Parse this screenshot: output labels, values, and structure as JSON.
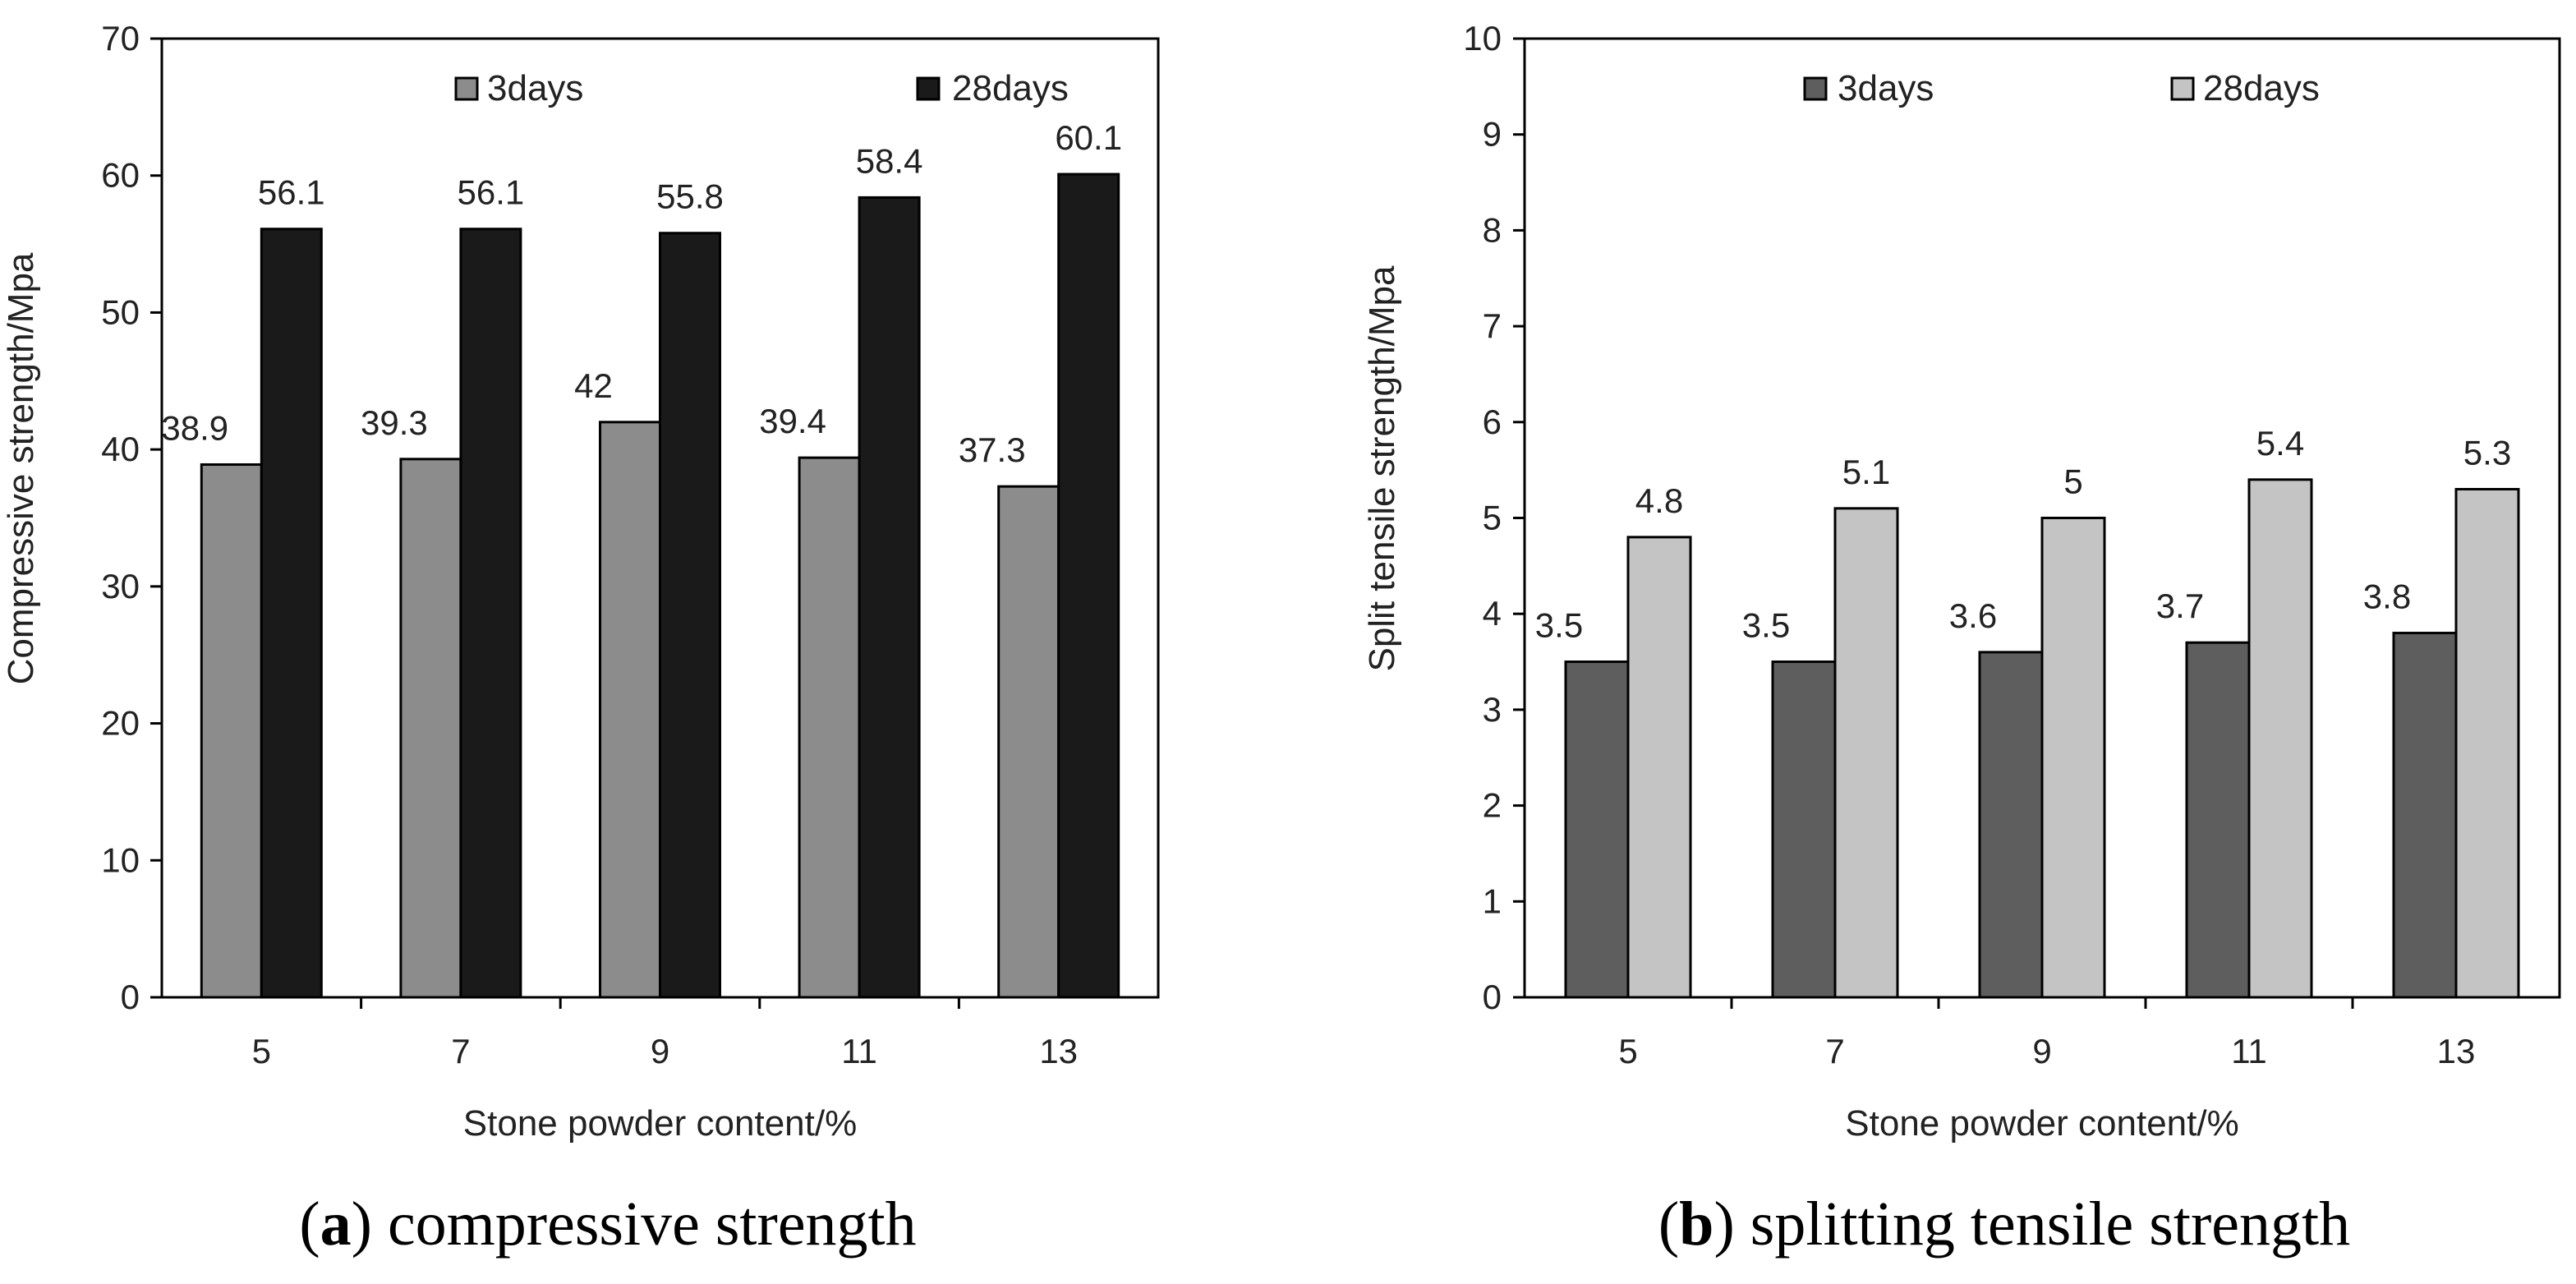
{
  "chart_data": [
    {
      "type": "bar",
      "caption_letter": "a",
      "caption_text": " compressive strength",
      "categories": [
        "5",
        "7",
        "9",
        "11",
        "13"
      ],
      "series": [
        {
          "name": "3days",
          "color": "#8c8c8c",
          "values": [
            38.9,
            39.3,
            42,
            39.4,
            37.3
          ],
          "labels": [
            "38.9",
            "39.3",
            "42",
            "39.4",
            "37.3"
          ]
        },
        {
          "name": "28days",
          "color": "#1a1a1a",
          "values": [
            56.1,
            56.1,
            55.8,
            58.4,
            60.1
          ],
          "labels": [
            "56.1",
            "56.1",
            "55.8",
            "58.4",
            "60.1"
          ]
        }
      ],
      "xlabel": "Stone powder content/%",
      "ylabel": "Compressive  strength/Mpa",
      "ylim": [
        0,
        70
      ],
      "yticks": [
        0,
        10,
        20,
        30,
        40,
        50,
        60,
        70
      ],
      "grid": false,
      "legend": "top-center"
    },
    {
      "type": "bar",
      "caption_letter": "b",
      "caption_text": " splitting tensile strength",
      "categories": [
        "5",
        "7",
        "9",
        "11",
        "13"
      ],
      "series": [
        {
          "name": "3days",
          "color": "#5e5e5e",
          "values": [
            3.5,
            3.5,
            3.6,
            3.7,
            3.8
          ],
          "labels": [
            "3.5",
            "3.5",
            "3.6",
            "3.7",
            "3.8"
          ]
        },
        {
          "name": "28days",
          "color": "#c4c4c4",
          "values": [
            4.8,
            5.1,
            5,
            5.4,
            5.3
          ],
          "labels": [
            "4.8",
            "5.1",
            "5",
            "5.4",
            "5.3"
          ]
        }
      ],
      "xlabel": "Stone powder content/%",
      "ylabel": "Split tensile strength/Mpa",
      "ylim": [
        0,
        10
      ],
      "yticks": [
        0,
        1,
        2,
        3,
        4,
        5,
        6,
        7,
        8,
        9,
        10
      ],
      "grid": false,
      "legend": "top-center"
    }
  ]
}
